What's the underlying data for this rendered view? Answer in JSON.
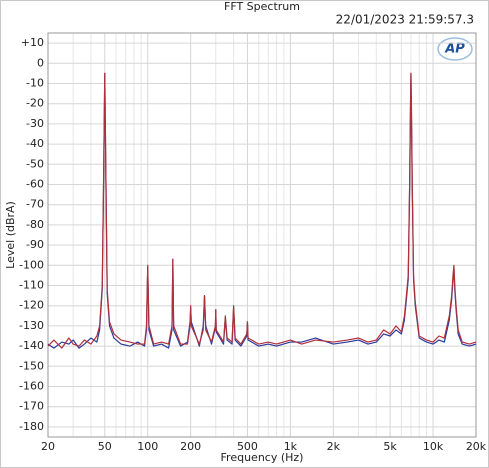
{
  "chart_data": {
    "type": "line",
    "title": "FFT Spectrum",
    "timestamp": "22/01/2023 21:59:57.3",
    "logo": "AP",
    "xlabel": "Frequency (Hz)",
    "ylabel": "Level (dBrA)",
    "xlog": true,
    "grid": true,
    "xlim": [
      20,
      20000
    ],
    "xticks": [
      20,
      50,
      100,
      200,
      500,
      {
        "value": 1000,
        "label": "1k"
      },
      {
        "value": 2000,
        "label": "2k"
      },
      {
        "value": 5000,
        "label": "5k"
      },
      {
        "value": 10000,
        "label": "10k"
      },
      {
        "value": 20000,
        "label": "20k"
      }
    ],
    "xminor": [
      30,
      40,
      60,
      70,
      80,
      90,
      300,
      400,
      600,
      700,
      800,
      900,
      3000,
      4000,
      6000,
      7000,
      8000,
      9000
    ],
    "ylim": [
      -185,
      15
    ],
    "yticks": [
      {
        "value": 10,
        "label": "+10"
      },
      0,
      -10,
      -20,
      -30,
      -40,
      -50,
      -60,
      -70,
      -80,
      -90,
      -100,
      -110,
      -120,
      -130,
      -140,
      -150,
      -160,
      -170,
      -180
    ],
    "x": [
      20,
      22,
      25,
      28,
      30,
      33,
      36,
      40,
      44,
      46,
      48,
      49,
      50,
      51,
      52,
      54,
      58,
      65,
      75,
      85,
      95,
      98,
      100,
      102,
      110,
      125,
      140,
      148,
      150,
      152,
      170,
      190,
      198,
      200,
      202,
      230,
      245,
      250,
      255,
      280,
      298,
      300,
      302,
      340,
      350,
      360,
      390,
      400,
      410,
      450,
      495,
      500,
      505,
      600,
      700,
      800,
      1000,
      1200,
      1500,
      2000,
      2500,
      3000,
      3500,
      4000,
      4500,
      5000,
      5500,
      6000,
      6300,
      6500,
      6700,
      6850,
      6950,
      7000,
      7050,
      7150,
      7300,
      7500,
      8000,
      9000,
      10000,
      11000,
      12000,
      13000,
      13500,
      13800,
      14000,
      14200,
      14500,
      15000,
      16000,
      18000,
      20000
    ],
    "series": [
      {
        "color": "#2b3a9e",
        "values": [
          -139,
          -141,
          -138,
          -139,
          -137,
          -141,
          -139,
          -136,
          -138,
          -132,
          -112,
          -62,
          -5,
          -62,
          -114,
          -130,
          -136,
          -139,
          -140,
          -138,
          -140,
          -132,
          -101,
          -132,
          -140,
          -139,
          -141,
          -132,
          -97,
          -132,
          -140,
          -138,
          -128,
          -121,
          -128,
          -140,
          -130,
          -115,
          -130,
          -139,
          -131,
          -122,
          -133,
          -139,
          -126,
          -137,
          -139,
          -121,
          -137,
          -140,
          -135,
          -128,
          -137,
          -140,
          -139,
          -140,
          -138,
          -138,
          -136,
          -139,
          -138,
          -137,
          -139,
          -138,
          -134,
          -135,
          -132,
          -134,
          -127,
          -117,
          -107,
          -62,
          -22,
          -5,
          -22,
          -62,
          -107,
          -120,
          -136,
          -138,
          -139,
          -137,
          -138,
          -127,
          -117,
          -107,
          -101,
          -112,
          -122,
          -134,
          -139,
          -140,
          -139
        ]
      },
      {
        "color": "#b0303a",
        "values": [
          -140,
          -137,
          -141,
          -136,
          -139,
          -140,
          -137,
          -139,
          -135,
          -130,
          -110,
          -60,
          -5,
          -60,
          -112,
          -128,
          -134,
          -137,
          -138,
          -139,
          -139,
          -130,
          -100,
          -130,
          -139,
          -138,
          -139,
          -130,
          -97,
          -130,
          -139,
          -139,
          -130,
          -120,
          -130,
          -139,
          -132,
          -115,
          -132,
          -138,
          -130,
          -122,
          -132,
          -138,
          -125,
          -136,
          -138,
          -120,
          -136,
          -139,
          -134,
          -128,
          -136,
          -139,
          -138,
          -139,
          -137,
          -139,
          -137,
          -138,
          -137,
          -136,
          -138,
          -137,
          -132,
          -134,
          -130,
          -133,
          -125,
          -115,
          -105,
          -60,
          -20,
          -5,
          -20,
          -60,
          -105,
          -118,
          -135,
          -137,
          -138,
          -135,
          -136,
          -125,
          -115,
          -105,
          -100,
          -110,
          -120,
          -132,
          -138,
          -139,
          -138
        ]
      }
    ]
  }
}
